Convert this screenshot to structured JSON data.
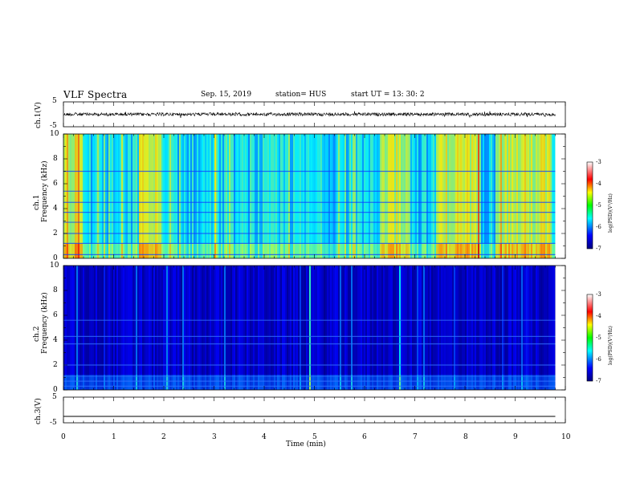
{
  "header": {
    "title": "VLF Spectra",
    "date": "Sep. 15, 2019",
    "station": "station= HUS",
    "start": "start  UT =   13: 30: 2"
  },
  "panels": {
    "ch1": {
      "label": "ch.1(V)",
      "ticks": [
        "5",
        "-5"
      ]
    },
    "spec1": {
      "label1": "ch.1",
      "label2": "Frequency  (kHz)",
      "ticks": [
        "10",
        "8",
        "6",
        "4",
        "2",
        "0"
      ]
    },
    "spec2": {
      "label1": "ch.2",
      "label2": "Frequency  (kHz)",
      "ticks": [
        "10",
        "8",
        "6",
        "4",
        "2",
        "0"
      ]
    },
    "ch3": {
      "label": "ch.3(V)",
      "ticks": [
        "5",
        "-5"
      ]
    }
  },
  "colorbar": {
    "label": "log(PSD)(V²/Hz)",
    "ticks": [
      "-3",
      "-4",
      "-5",
      "-6",
      "-7"
    ]
  },
  "xaxis": {
    "label": "Time  (min)",
    "ticks": [
      "0",
      "1",
      "2",
      "3",
      "4",
      "5",
      "6",
      "7",
      "8",
      "9",
      "10"
    ]
  },
  "chart_data": [
    {
      "type": "line",
      "name": "ch.1(V)",
      "x_range": [
        0,
        10
      ],
      "ylim": [
        -5,
        5
      ],
      "approx_level": 0
    },
    {
      "type": "heatmap",
      "name": "ch.1",
      "xlabel": "Time  (min)",
      "ylabel": "Frequency  (kHz)",
      "xlim": [
        0,
        10
      ],
      "ylim": [
        0,
        10
      ],
      "data_end_min": 9.8,
      "colorbar": {
        "label": "log(PSD)(V²/Hz)",
        "range": [
          -7,
          -3
        ]
      },
      "brighter_time_bands_min": [
        [
          0,
          0.35
        ],
        [
          1.5,
          1.9
        ],
        [
          6.3,
          6.9
        ],
        [
          7.4,
          8.3
        ],
        [
          8.6,
          9.7
        ]
      ],
      "harmonic_lines_khz": [
        0.3,
        1.2,
        2.0,
        2.9,
        3.7,
        4.5,
        5.4,
        7.0
      ]
    },
    {
      "type": "heatmap",
      "name": "ch.2",
      "xlabel": "Time  (min)",
      "ylabel": "Frequency  (kHz)",
      "xlim": [
        0,
        10
      ],
      "ylim": [
        0,
        10
      ],
      "data_end_min": 9.8,
      "colorbar": {
        "label": "log(PSD)(V²/Hz)",
        "range": [
          -7,
          -3
        ]
      },
      "harmonic_lines_khz": [
        0.3,
        0.7,
        1.1,
        2.0,
        3.7,
        4.3,
        5.6
      ]
    },
    {
      "type": "line",
      "name": "ch.3(V)",
      "x_range": [
        0,
        10
      ],
      "ylim": [
        -5,
        5
      ],
      "approx_level": -2.5
    }
  ]
}
